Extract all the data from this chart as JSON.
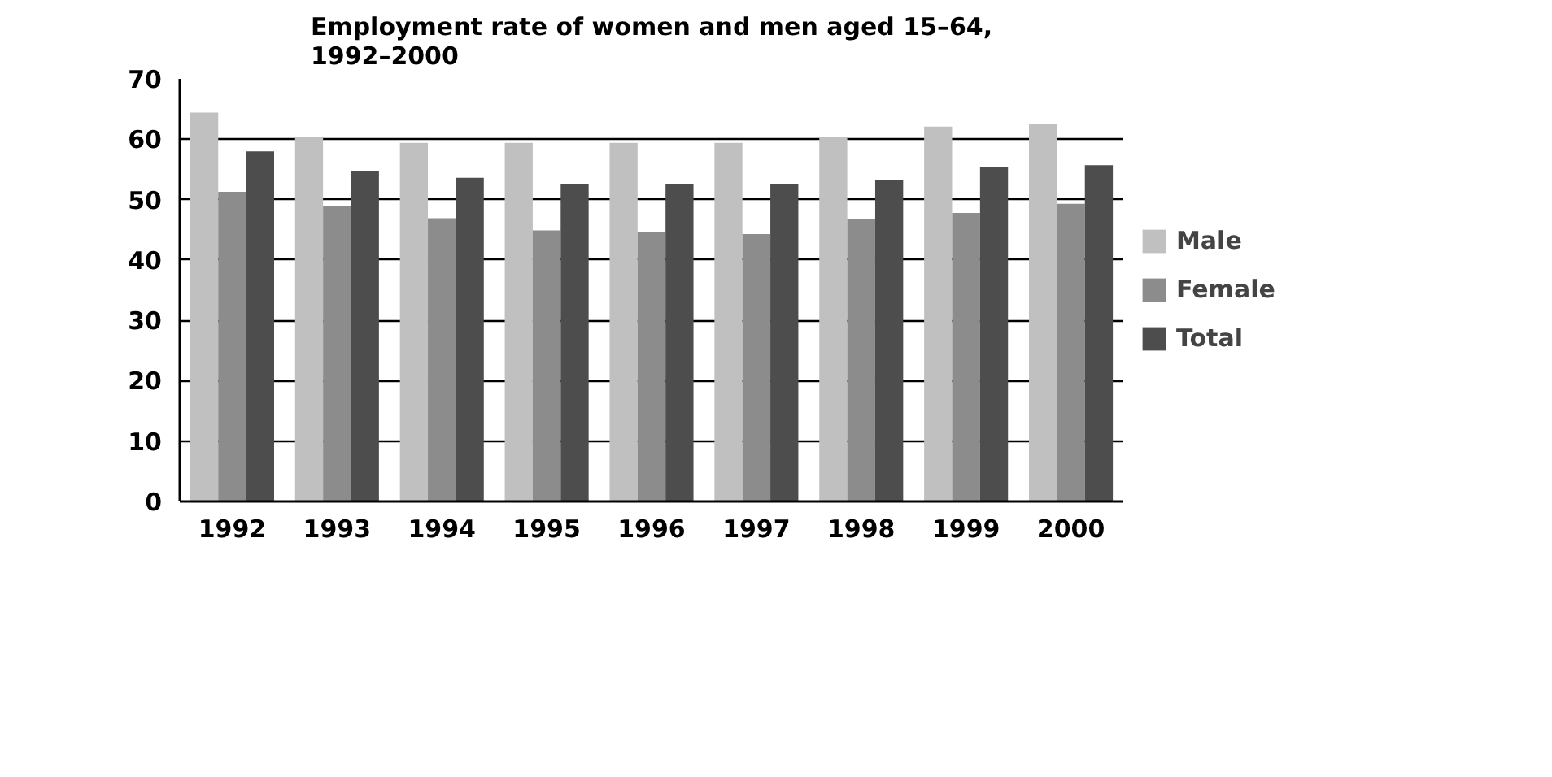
{
  "chart_data": {
    "type": "bar",
    "title": "Employment rate of women and men aged 15–64,\n1992–2000",
    "categories": [
      "1992",
      "1993",
      "1994",
      "1995",
      "1996",
      "1997",
      "1998",
      "1999",
      "2000"
    ],
    "series": [
      {
        "name": "Male",
        "color": "#c0c0c0",
        "values": [
          64.4,
          60.3,
          59.4,
          59.4,
          59.4,
          59.4,
          60.3,
          62.1,
          62.6
        ]
      },
      {
        "name": "Female",
        "color": "#8c8c8c",
        "values": [
          51.3,
          49.0,
          46.9,
          44.9,
          44.6,
          44.3,
          46.7,
          47.8,
          49.3
        ]
      },
      {
        "name": "Total",
        "color": "#4d4d4d",
        "values": [
          58.0,
          54.8,
          53.6,
          52.5,
          52.5,
          52.5,
          53.3,
          55.4,
          55.7
        ]
      }
    ],
    "ylim": [
      0,
      70
    ],
    "yticks": [
      0,
      10,
      20,
      30,
      40,
      50,
      60,
      70
    ],
    "grid": "y",
    "legend": "right"
  }
}
